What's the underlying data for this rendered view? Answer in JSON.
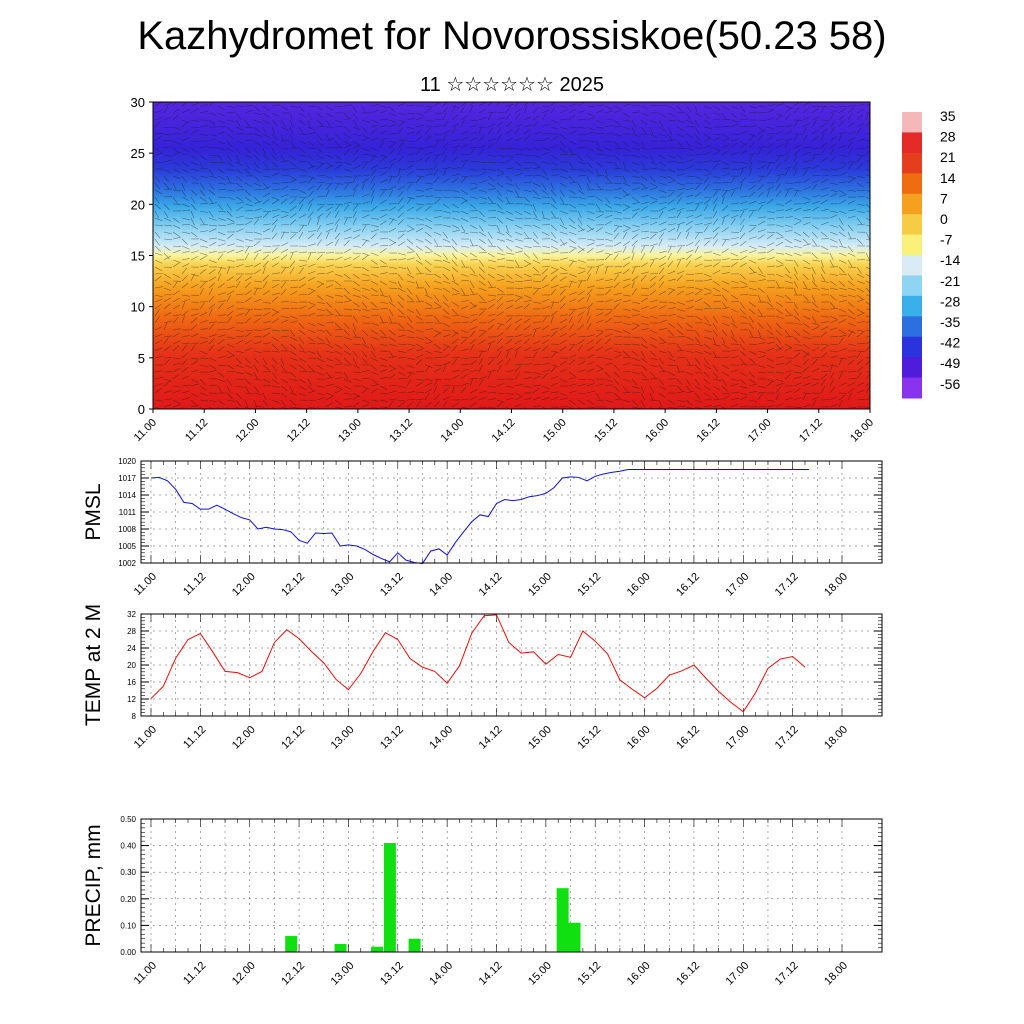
{
  "title": "Kazhydromet for Novorossiskoe(50.23 58)",
  "subtitle": "11 ☆☆☆☆☆☆ 2025",
  "time_labels": [
    "11.00",
    "11.12",
    "12.00",
    "12.12",
    "13.00",
    "13.12",
    "14.00",
    "14.12",
    "15.00",
    "15.12",
    "16.00",
    "16.12",
    "17.00",
    "17.12",
    "18.00"
  ],
  "colors": {
    "pmsl_line": "#1010d0",
    "temp_line": "#e01010",
    "precip_bar": "#10e010"
  },
  "chart_data": [
    {
      "type": "heatmap",
      "name": "temperature-wind-cross-section",
      "ylim": [
        0,
        30
      ],
      "yticks": [
        0,
        5,
        10,
        15,
        20,
        25,
        30
      ],
      "colorbar_labels": [
        "35",
        "28",
        "21",
        "14",
        "7",
        "0",
        "-7",
        "-14",
        "-21",
        "-28",
        "-35",
        "-42",
        "-49",
        "-56"
      ],
      "colorbar_colors": [
        "#f4b8b8",
        "#e52a2a",
        "#e53e1e",
        "#ef6c10",
        "#f6a020",
        "#f7cc45",
        "#fbf17a",
        "#d9ecf5",
        "#8fd4f2",
        "#39b0ea",
        "#2b6fe0",
        "#2a33dc",
        "#4e1ddc",
        "#8a33ee"
      ]
    },
    {
      "type": "line",
      "ylabel": "PMSL",
      "ylim": [
        1002,
        1020
      ],
      "yticks": [
        1002,
        1005,
        1008,
        1011,
        1014,
        1017,
        1020
      ],
      "x": [
        0,
        0.083,
        0.167,
        0.25,
        0.333,
        0.417,
        0.5,
        0.583,
        0.667,
        0.75,
        0.833,
        0.917,
        1,
        1.083,
        1.167,
        1.25,
        1.333,
        1.417,
        1.5,
        1.583,
        1.667,
        1.75,
        1.833,
        1.917,
        2,
        2.083,
        2.167,
        2.25,
        2.333,
        2.417,
        2.5,
        2.583,
        2.667,
        2.75,
        2.833,
        2.917,
        3,
        3.083,
        3.167,
        3.25,
        3.333,
        3.417,
        3.5,
        3.583,
        3.667,
        3.75,
        3.833,
        3.917,
        4,
        4.083,
        4.167,
        4.25,
        4.333,
        4.417,
        4.5,
        4.583,
        4.667,
        4.75,
        4.833,
        4.917,
        5,
        5.083,
        5.167,
        5.25,
        5.333,
        5.417,
        5.5,
        5.583,
        5.667,
        5.75,
        5.833,
        5.917,
        6,
        6.083,
        6.167,
        6.25,
        6.333,
        6.417,
        6.5,
        6.583,
        6.667
      ],
      "values": [
        1017,
        1017.1,
        1016.5,
        1015,
        1012.7,
        1012.5,
        1011.5,
        1011.5,
        1012.2,
        1011.5,
        1010.7,
        1010,
        1009.6,
        1008,
        1008.3,
        1008,
        1007.9,
        1007.5,
        1006,
        1005.5,
        1007.3,
        1007.2,
        1007.3,
        1005,
        1005.2,
        1005,
        1004.4,
        1003.5,
        1002.8,
        1002.2,
        1003.8,
        1002.5,
        1002.1,
        1001.9,
        1004.1,
        1004.5,
        1003.4,
        1005.6,
        1007.5,
        1009.3,
        1010.5,
        1010.2,
        1012.5,
        1013.2,
        1013,
        1013.2,
        1013.7,
        1013.9,
        1014.3,
        1015.3,
        1017,
        1017.2,
        1017.1,
        1016.5,
        1017.3,
        1017.7,
        1018,
        1018.2,
        1018.5,
        1018.5,
        1018.5,
        1018.5,
        1018.5,
        1018.5,
        1018.5,
        1018.5,
        1018.5,
        1018.5,
        1018.5,
        1018.5,
        1018.5,
        1018.5,
        1018.5,
        1018.5,
        1018.5,
        1018.5,
        1018.5,
        1018.5,
        1018.5,
        1018.5,
        1018.5
      ]
    },
    {
      "type": "line",
      "ylabel": "TEMP at 2 M",
      "ylim": [
        8,
        32
      ],
      "yticks": [
        8,
        12,
        16,
        20,
        24,
        28,
        32
      ],
      "x": [
        0,
        0.125,
        0.25,
        0.375,
        0.5,
        0.625,
        0.75,
        0.875,
        1,
        1.125,
        1.25,
        1.375,
        1.5,
        1.625,
        1.75,
        1.875,
        2,
        2.125,
        2.25,
        2.375,
        2.5,
        2.625,
        2.75,
        2.875,
        3,
        3.125,
        3.25,
        3.375,
        3.5,
        3.625,
        3.75,
        3.875,
        4,
        4.125,
        4.25,
        4.375,
        4.5,
        4.625,
        4.75,
        4.875,
        5,
        5.125,
        5.25,
        5.375,
        5.5,
        5.625,
        5.75,
        5.875,
        6,
        6.125,
        6.25,
        6.375,
        6.5,
        6.625
      ],
      "values": [
        12.1,
        15,
        21.6,
        26,
        27.4,
        23.1,
        18.5,
        18.2,
        17,
        18.5,
        25.3,
        28.3,
        26.2,
        23.2,
        20.5,
        16.6,
        14.2,
        18,
        23.2,
        27.6,
        26,
        21.5,
        19.5,
        18.5,
        15.7,
        19.8,
        27.5,
        31.6,
        31.8,
        25.3,
        22.8,
        23.1,
        20.2,
        22.5,
        21.8,
        28,
        25.6,
        22.6,
        16.5,
        14.3,
        12.3,
        14.5,
        17.6,
        18.6,
        20,
        16.8,
        13.8,
        11.2,
        9,
        13.5,
        19.2,
        21.4,
        22,
        19.5
      ]
    },
    {
      "type": "bar",
      "ylabel": "PRECIP, mm",
      "ylim": [
        0,
        0.5
      ],
      "yticks": [
        "0.00",
        "0.10",
        "0.20",
        "0.30",
        "0.40",
        "0.50"
      ],
      "x": [
        1.42,
        1.92,
        2.29,
        2.42,
        2.67,
        4.17,
        4.29
      ],
      "values": [
        0.06,
        0.03,
        0.02,
        0.41,
        0.05,
        0.24,
        0.11
      ]
    }
  ]
}
